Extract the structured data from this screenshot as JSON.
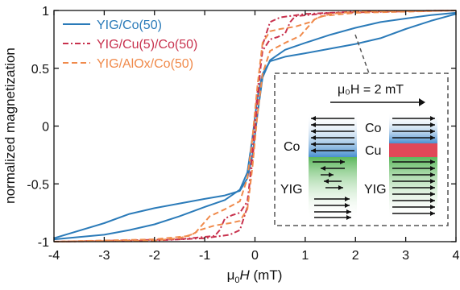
{
  "chart_data": {
    "type": "line",
    "xlabel_parts": {
      "mu": "μ",
      "sub": "0",
      "var": "H",
      "unit": " (mT)"
    },
    "ylabel": "normalized magnetization",
    "xlim": [
      -4,
      4
    ],
    "ylim": [
      -1,
      1
    ],
    "x_ticks": [
      -4,
      -3,
      -2,
      -1,
      0,
      1,
      2,
      3,
      4
    ],
    "x_tick_labels": [
      "-4",
      "-3",
      "-2",
      "-1",
      "0",
      "1",
      "2",
      "3",
      "4"
    ],
    "y_ticks": [
      -1,
      -0.5,
      0,
      0.5,
      1
    ],
    "y_tick_labels": [
      "-1",
      "-0.5",
      "0",
      "0.5",
      "1"
    ],
    "grid": false,
    "legend_position": "top-left",
    "series": [
      {
        "name": "YIG/Co(50)",
        "color": "#2b7bb9",
        "dash": "solid",
        "branches": [
          {
            "x": [
              -4,
              -3,
              -2.5,
              -2,
              -1.5,
              -1,
              -0.6,
              -0.3,
              -0.15,
              -0.05,
              0.05,
              0.15,
              0.3,
              0.6,
              1,
              1.5,
              2,
              2.5,
              3,
              3.5,
              4
            ],
            "y": [
              -0.98,
              -0.94,
              -0.9,
              -0.85,
              -0.78,
              -0.7,
              -0.64,
              -0.55,
              -0.4,
              -0.1,
              0.25,
              0.45,
              0.56,
              0.6,
              0.63,
              0.67,
              0.71,
              0.76,
              0.84,
              0.91,
              0.97
            ]
          },
          {
            "x": [
              4,
              3.5,
              3,
              2.5,
              2,
              1.5,
              1,
              0.6,
              0.3,
              0.15,
              0.05,
              -0.05,
              -0.15,
              -0.3,
              -0.6,
              -1,
              -1.5,
              -2,
              -2.5,
              -3,
              -4
            ],
            "y": [
              0.98,
              0.96,
              0.93,
              0.9,
              0.85,
              0.79,
              0.72,
              0.66,
              0.57,
              0.42,
              0.1,
              -0.25,
              -0.45,
              -0.56,
              -0.6,
              -0.63,
              -0.67,
              -0.71,
              -0.76,
              -0.84,
              -0.97
            ]
          }
        ]
      },
      {
        "name": "YIG/Cu(5)/Co(50)",
        "color": "#c8324e",
        "dash": "dashdot",
        "branches": [
          {
            "x": [
              -4,
              -2,
              -1,
              -0.5,
              -0.3,
              -0.15,
              -0.05,
              0.05,
              0.15,
              0.3,
              0.45,
              0.6,
              0.7,
              0.8,
              1.5,
              4
            ],
            "y": [
              -1,
              -0.99,
              -0.97,
              -0.94,
              -0.9,
              -0.7,
              -0.2,
              0.3,
              0.65,
              0.75,
              0.77,
              0.8,
              0.9,
              0.95,
              0.98,
              1
            ]
          },
          {
            "x": [
              4,
              2,
              1,
              0.5,
              0.3,
              0.15,
              0.05,
              -0.05,
              -0.15,
              -0.3,
              -0.45,
              -0.6,
              -0.7,
              -0.8,
              -1.5,
              -4
            ],
            "y": [
              1,
              0.99,
              0.97,
              0.94,
              0.9,
              0.7,
              0.2,
              -0.3,
              -0.65,
              -0.75,
              -0.77,
              -0.8,
              -0.9,
              -0.95,
              -0.98,
              -1
            ]
          }
        ]
      },
      {
        "name": "YIG/AlOx/Co(50)",
        "color": "#f08a4b",
        "dash": "dash",
        "branches": [
          {
            "x": [
              -4,
              -2,
              -1.5,
              -1.2,
              -0.9,
              -0.6,
              -0.3,
              -0.15,
              -0.05,
              0.05,
              0.15,
              0.3,
              0.5,
              0.8,
              1.1,
              1.3,
              2,
              4
            ],
            "y": [
              -1,
              -0.99,
              -0.97,
              -0.93,
              -0.78,
              -0.72,
              -0.65,
              -0.45,
              -0.1,
              0.35,
              0.72,
              0.82,
              0.84,
              0.86,
              0.9,
              0.95,
              0.98,
              1
            ]
          },
          {
            "x": [
              4,
              2,
              1.5,
              1.2,
              0.9,
              0.6,
              0.3,
              0.15,
              0.05,
              -0.05,
              -0.15,
              -0.3,
              -0.5,
              -0.8,
              -1.1,
              -1.3,
              -2,
              -4
            ],
            "y": [
              1,
              0.99,
              0.97,
              0.93,
              0.78,
              0.72,
              0.65,
              0.45,
              0.1,
              -0.35,
              -0.72,
              -0.82,
              -0.84,
              -0.86,
              -0.9,
              -0.95,
              -0.98,
              -1
            ]
          }
        ]
      }
    ]
  },
  "inset": {
    "field_label": "μ₀H = 2 mT",
    "left_top_label": "Co",
    "left_bottom_label": "YIG",
    "right_top_label": "Co",
    "right_mid_label": "Cu",
    "right_bottom_label": "YIG",
    "colors": {
      "co_layer": "#4a90d0",
      "yig_layer": "#5cb85c",
      "cu_layer": "#e04858",
      "frame": "#555555"
    }
  }
}
